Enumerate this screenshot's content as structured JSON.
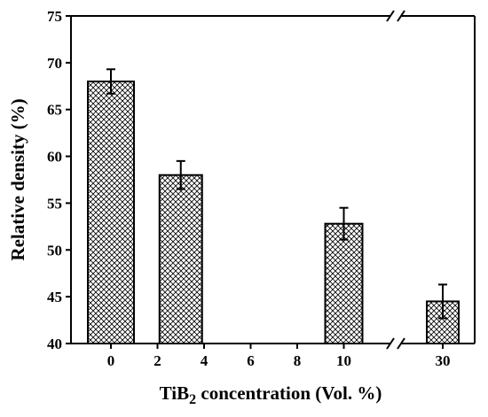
{
  "chart_data": {
    "type": "bar",
    "xlabel_main": "TiB",
    "xlabel_sub": "2",
    "xlabel_rest": " concentration (Vol. %)",
    "ylabel": "Relative density (%)",
    "ylim": [
      40,
      75
    ],
    "yticks": [
      40,
      45,
      50,
      55,
      60,
      65,
      70,
      75
    ],
    "xticks": [
      "0",
      "2",
      "4",
      "6",
      "8",
      "10",
      "30"
    ],
    "axis_break": true,
    "grid": false,
    "bar_fill": "crosshatch",
    "bar_color": "#000000",
    "series": [
      {
        "categories": [
          "0",
          "2-4",
          "10",
          "30"
        ],
        "values": [
          68.0,
          58.0,
          52.8,
          44.5
        ],
        "errors": [
          1.3,
          1.5,
          1.7,
          1.8
        ]
      }
    ]
  }
}
